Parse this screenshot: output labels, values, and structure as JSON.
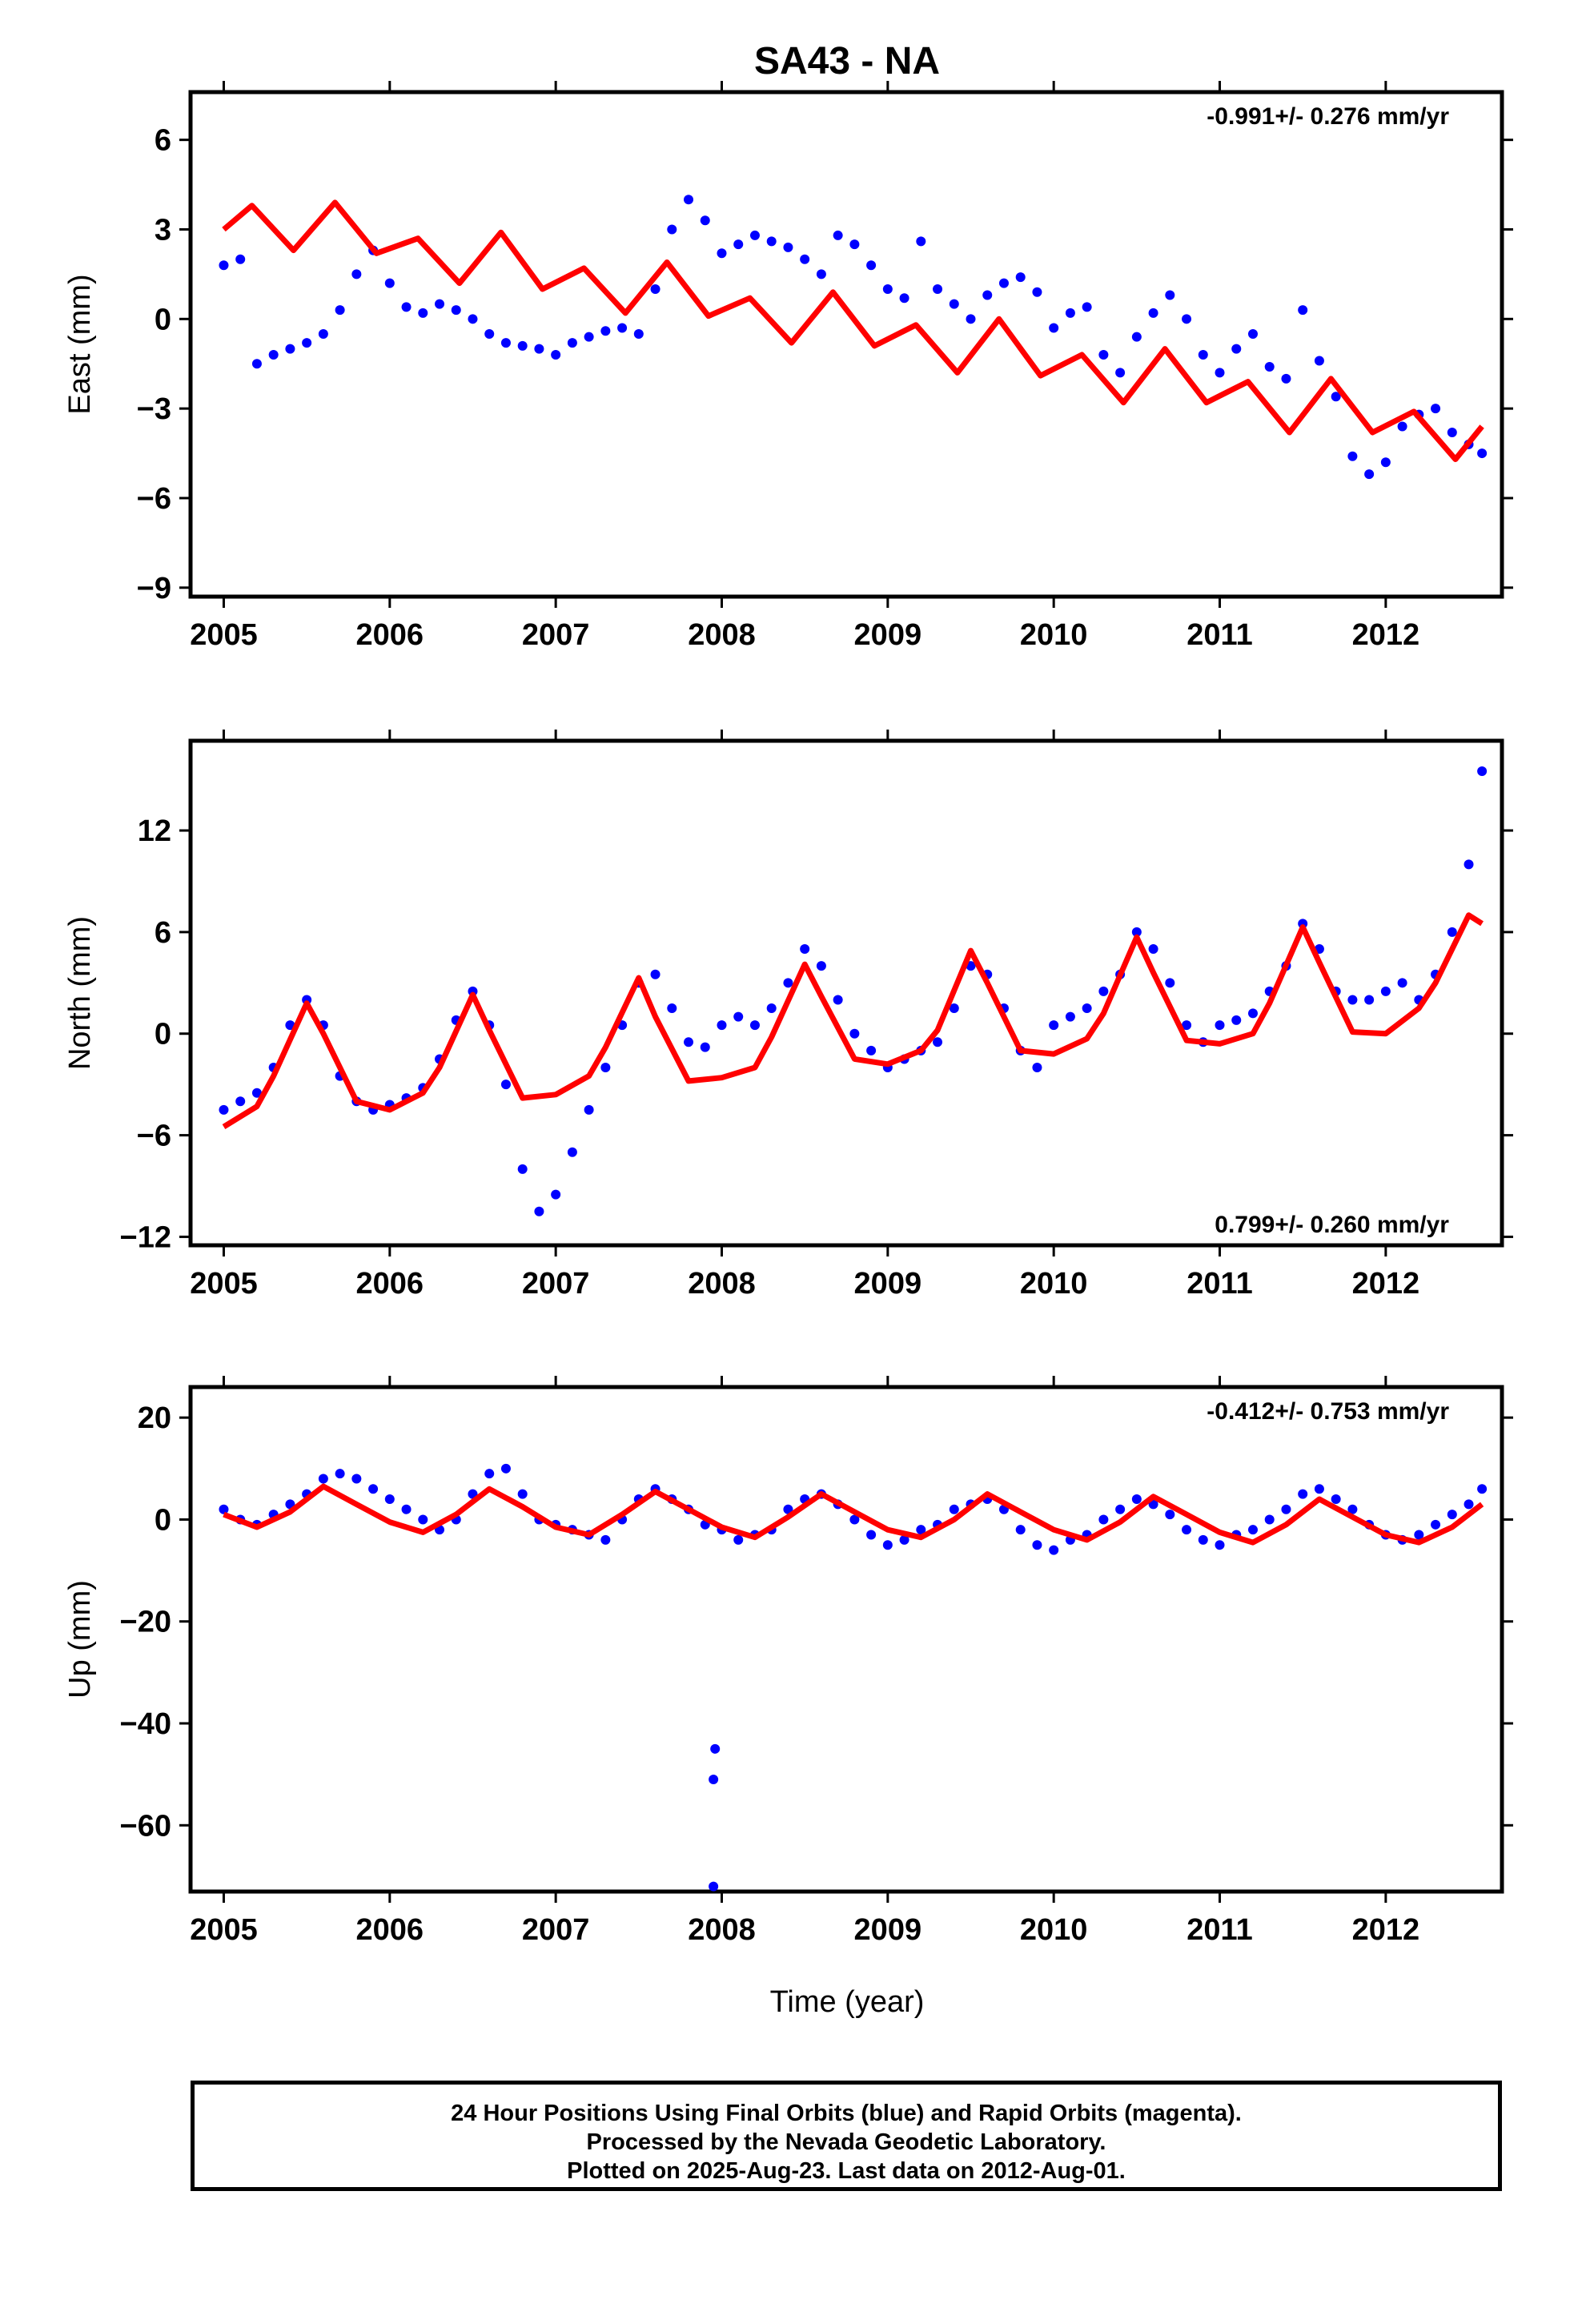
{
  "title": "SA43 - NA",
  "xlabel": "Time (year)",
  "footer": {
    "line1": "24 Hour Positions Using Final Orbits (blue) and Rapid Orbits (magenta).",
    "line2": "Processed by the Nevada Geodetic Laboratory.",
    "line3": "Plotted on 2025-Aug-23. Last data on 2012-Aug-01."
  },
  "colors": {
    "observations": "#0000ff",
    "model": "#ff0000",
    "frame": "#000000"
  },
  "chart_data": [
    {
      "type": "scatter",
      "panel": "east",
      "ylabel": "East (mm)",
      "rate_label": "-0.991+/- 0.276 mm/yr",
      "rate_position": "top-right",
      "xlim": [
        2004.8,
        2012.7
      ],
      "ylim": [
        -9.3,
        7.6
      ],
      "xticks": [
        2005,
        2006,
        2007,
        2008,
        2009,
        2010,
        2011,
        2012
      ],
      "yticks": [
        6,
        3,
        0,
        -3,
        -6,
        -9
      ],
      "grid": false,
      "series": [
        {
          "role": "daily_positions",
          "x": [
            2005.0,
            2005.1,
            2005.2,
            2005.3,
            2005.4,
            2005.5,
            2005.6,
            2005.7,
            2005.8,
            2005.9,
            2006.0,
            2006.1,
            2006.2,
            2006.3,
            2006.4,
            2006.5,
            2006.6,
            2006.7,
            2006.8,
            2006.9,
            2007.0,
            2007.1,
            2007.2,
            2007.3,
            2007.4,
            2007.5,
            2007.6,
            2007.7,
            2007.8,
            2007.9,
            2008.0,
            2008.1,
            2008.2,
            2008.3,
            2008.4,
            2008.5,
            2008.6,
            2008.7,
            2008.8,
            2008.9,
            2009.0,
            2009.1,
            2009.2,
            2009.3,
            2009.4,
            2009.5,
            2009.6,
            2009.7,
            2009.8,
            2009.9,
            2010.0,
            2010.1,
            2010.2,
            2010.3,
            2010.4,
            2010.5,
            2010.6,
            2010.7,
            2010.8,
            2010.9,
            2011.0,
            2011.1,
            2011.2,
            2011.3,
            2011.4,
            2011.5,
            2011.6,
            2011.7,
            2011.8,
            2011.9,
            2012.0,
            2012.1,
            2012.2,
            2012.3,
            2012.4,
            2012.5,
            2012.58
          ],
          "y": [
            1.8,
            2.0,
            -1.5,
            -1.2,
            -1.0,
            -0.8,
            -0.5,
            0.3,
            1.5,
            2.3,
            1.2,
            0.4,
            0.2,
            0.5,
            0.3,
            0.0,
            -0.5,
            -0.8,
            -0.9,
            -1.0,
            -1.2,
            -0.8,
            -0.6,
            -0.4,
            -0.3,
            -0.5,
            1.0,
            3.0,
            4.0,
            3.3,
            2.2,
            2.5,
            2.8,
            2.6,
            2.4,
            2.0,
            1.5,
            2.8,
            2.5,
            1.8,
            1.0,
            0.7,
            2.6,
            1.0,
            0.5,
            0.0,
            0.8,
            1.2,
            1.4,
            0.9,
            -0.3,
            0.2,
            0.4,
            -1.2,
            -1.8,
            -0.6,
            0.2,
            0.8,
            0.0,
            -1.2,
            -1.8,
            -1.0,
            -0.5,
            -1.6,
            -2.0,
            0.3,
            -1.4,
            -2.6,
            -4.6,
            -5.2,
            -4.8,
            -3.6,
            -3.2,
            -3.0,
            -3.8,
            -4.2,
            -4.5
          ]
        },
        {
          "role": "model_fit",
          "x": [
            2005.0,
            2005.17,
            2005.42,
            2005.67,
            2005.92,
            2006.17,
            2006.42,
            2006.67,
            2006.92,
            2007.17,
            2007.42,
            2007.67,
            2007.92,
            2008.17,
            2008.42,
            2008.67,
            2008.92,
            2009.17,
            2009.42,
            2009.67,
            2009.92,
            2010.17,
            2010.42,
            2010.67,
            2010.92,
            2011.17,
            2011.42,
            2011.67,
            2011.92,
            2012.17,
            2012.42,
            2012.58
          ],
          "y": [
            3.0,
            3.8,
            2.3,
            3.9,
            2.2,
            2.7,
            1.2,
            2.9,
            1.0,
            1.7,
            0.2,
            1.9,
            0.1,
            0.7,
            -0.8,
            0.9,
            -0.9,
            -0.2,
            -1.8,
            0.0,
            -1.9,
            -1.2,
            -2.8,
            -1.0,
            -2.8,
            -2.1,
            -3.8,
            -2.0,
            -3.8,
            -3.1,
            -4.7,
            -3.6
          ]
        }
      ]
    },
    {
      "type": "scatter",
      "panel": "north",
      "ylabel": "North (mm)",
      "rate_label": "0.799+/- 0.260 mm/yr",
      "rate_position": "bottom-right",
      "xlim": [
        2004.8,
        2012.7
      ],
      "ylim": [
        -12.5,
        17.3
      ],
      "xticks": [
        2005,
        2006,
        2007,
        2008,
        2009,
        2010,
        2011,
        2012
      ],
      "yticks": [
        12,
        6,
        0,
        -6,
        -12
      ],
      "grid": false,
      "series": [
        {
          "role": "daily_positions",
          "x": [
            2005.0,
            2005.1,
            2005.2,
            2005.3,
            2005.4,
            2005.5,
            2005.6,
            2005.7,
            2005.8,
            2005.9,
            2006.0,
            2006.1,
            2006.2,
            2006.3,
            2006.4,
            2006.5,
            2006.6,
            2006.7,
            2006.8,
            2006.9,
            2007.0,
            2007.1,
            2007.2,
            2007.3,
            2007.4,
            2007.5,
            2007.6,
            2007.7,
            2007.8,
            2007.9,
            2008.0,
            2008.1,
            2008.2,
            2008.3,
            2008.4,
            2008.5,
            2008.6,
            2008.7,
            2008.8,
            2008.9,
            2009.0,
            2009.1,
            2009.2,
            2009.3,
            2009.4,
            2009.5,
            2009.6,
            2009.7,
            2009.8,
            2009.9,
            2010.0,
            2010.1,
            2010.2,
            2010.3,
            2010.4,
            2010.5,
            2010.6,
            2010.7,
            2010.8,
            2010.9,
            2011.0,
            2011.1,
            2011.2,
            2011.3,
            2011.4,
            2011.5,
            2011.6,
            2011.7,
            2011.8,
            2011.9,
            2012.0,
            2012.1,
            2012.2,
            2012.3,
            2012.4,
            2012.5,
            2012.58
          ],
          "y": [
            -4.5,
            -4.0,
            -3.5,
            -2.0,
            0.5,
            2.0,
            0.5,
            -2.5,
            -4.0,
            -4.5,
            -4.2,
            -3.8,
            -3.2,
            -1.5,
            0.8,
            2.5,
            0.5,
            -3.0,
            -8.0,
            -10.5,
            -9.5,
            -7.0,
            -4.5,
            -2.0,
            0.5,
            3.0,
            3.5,
            1.5,
            -0.5,
            -0.8,
            0.5,
            1.0,
            0.5,
            1.5,
            3.0,
            5.0,
            4.0,
            2.0,
            0.0,
            -1.0,
            -2.0,
            -1.5,
            -1.0,
            -0.5,
            1.5,
            4.0,
            3.5,
            1.5,
            -1.0,
            -2.0,
            0.5,
            1.0,
            1.5,
            2.5,
            3.5,
            6.0,
            5.0,
            3.0,
            0.5,
            -0.5,
            0.5,
            0.8,
            1.2,
            2.5,
            4.0,
            6.5,
            5.0,
            2.5,
            2.0,
            2.0,
            2.5,
            3.0,
            2.0,
            3.5,
            6.0,
            10.0,
            15.5
          ]
        },
        {
          "role": "model_fit",
          "x": [
            2005.0,
            2005.2,
            2005.3,
            2005.5,
            2005.6,
            2005.8,
            2006.0,
            2006.2,
            2006.3,
            2006.5,
            2006.6,
            2006.8,
            2007.0,
            2007.2,
            2007.3,
            2007.5,
            2007.6,
            2007.8,
            2008.0,
            2008.2,
            2008.3,
            2008.5,
            2008.6,
            2008.8,
            2009.0,
            2009.2,
            2009.3,
            2009.5,
            2009.6,
            2009.8,
            2010.0,
            2010.2,
            2010.3,
            2010.5,
            2010.6,
            2010.8,
            2011.0,
            2011.2,
            2011.3,
            2011.5,
            2011.6,
            2011.8,
            2012.0,
            2012.2,
            2012.3,
            2012.5,
            2012.58
          ],
          "y": [
            -5.5,
            -4.3,
            -2.5,
            1.8,
            0.0,
            -4.0,
            -4.5,
            -3.5,
            -2.0,
            2.3,
            0.2,
            -3.8,
            -3.6,
            -2.5,
            -0.8,
            3.3,
            1.0,
            -2.8,
            -2.6,
            -2.0,
            -0.2,
            4.1,
            2.2,
            -1.5,
            -1.8,
            -1.0,
            0.2,
            4.9,
            3.0,
            -1.0,
            -1.2,
            -0.3,
            1.2,
            5.7,
            3.6,
            -0.4,
            -0.6,
            0.0,
            1.8,
            6.3,
            4.2,
            0.1,
            0.0,
            1.5,
            3.0,
            7.0,
            6.5
          ]
        }
      ]
    },
    {
      "type": "scatter",
      "panel": "up",
      "ylabel": "Up (mm)",
      "rate_label": "-0.412+/- 0.753 mm/yr",
      "rate_position": "top-right",
      "xlim": [
        2004.8,
        2012.7
      ],
      "ylim": [
        -73,
        26
      ],
      "xticks": [
        2005,
        2006,
        2007,
        2008,
        2009,
        2010,
        2011,
        2012
      ],
      "yticks": [
        20,
        0,
        -20,
        -40,
        -60
      ],
      "grid": false,
      "series": [
        {
          "role": "daily_positions",
          "x": [
            2005.0,
            2005.1,
            2005.2,
            2005.3,
            2005.4,
            2005.5,
            2005.6,
            2005.7,
            2005.8,
            2005.9,
            2006.0,
            2006.1,
            2006.2,
            2006.3,
            2006.4,
            2006.5,
            2006.6,
            2006.7,
            2006.8,
            2006.9,
            2007.0,
            2007.1,
            2007.2,
            2007.3,
            2007.4,
            2007.5,
            2007.6,
            2007.7,
            2007.8,
            2007.9,
            2007.95,
            2007.95,
            2007.96,
            2008.0,
            2008.1,
            2008.2,
            2008.3,
            2008.4,
            2008.5,
            2008.6,
            2008.7,
            2008.8,
            2008.9,
            2009.0,
            2009.1,
            2009.2,
            2009.3,
            2009.4,
            2009.5,
            2009.6,
            2009.7,
            2009.8,
            2009.9,
            2010.0,
            2010.1,
            2010.2,
            2010.3,
            2010.4,
            2010.5,
            2010.6,
            2010.7,
            2010.8,
            2010.9,
            2011.0,
            2011.1,
            2011.2,
            2011.3,
            2011.4,
            2011.5,
            2011.6,
            2011.7,
            2011.8,
            2011.9,
            2012.0,
            2012.1,
            2012.2,
            2012.3,
            2012.4,
            2012.5,
            2012.58
          ],
          "y": [
            2.0,
            0.0,
            -1.0,
            1.0,
            3.0,
            5.0,
            8.0,
            9.0,
            8.0,
            6.0,
            4.0,
            2.0,
            0.0,
            -2.0,
            0.0,
            5.0,
            9.0,
            10.0,
            5.0,
            0.0,
            -1.0,
            -2.0,
            -3.0,
            -4.0,
            0.0,
            4.0,
            6.0,
            4.0,
            2.0,
            -1.0,
            -72.0,
            -51.0,
            -45.0,
            -2.0,
            -4.0,
            -3.0,
            -2.0,
            2.0,
            4.0,
            5.0,
            3.0,
            0.0,
            -3.0,
            -5.0,
            -4.0,
            -2.0,
            -1.0,
            2.0,
            3.0,
            4.0,
            2.0,
            -2.0,
            -5.0,
            -6.0,
            -4.0,
            -3.0,
            0.0,
            2.0,
            4.0,
            3.0,
            1.0,
            -2.0,
            -4.0,
            -5.0,
            -3.0,
            -2.0,
            0.0,
            2.0,
            5.0,
            6.0,
            4.0,
            2.0,
            -1.0,
            -3.0,
            -4.0,
            -3.0,
            -1.0,
            1.0,
            3.0,
            6.0
          ]
        },
        {
          "role": "model_fit",
          "x": [
            2005.0,
            2005.2,
            2005.4,
            2005.6,
            2005.8,
            2006.0,
            2006.2,
            2006.4,
            2006.6,
            2006.8,
            2007.0,
            2007.2,
            2007.4,
            2007.6,
            2007.8,
            2008.0,
            2008.2,
            2008.4,
            2008.6,
            2008.8,
            2009.0,
            2009.2,
            2009.4,
            2009.6,
            2009.8,
            2010.0,
            2010.2,
            2010.4,
            2010.6,
            2010.8,
            2011.0,
            2011.2,
            2011.4,
            2011.6,
            2011.8,
            2012.0,
            2012.2,
            2012.4,
            2012.58
          ],
          "y": [
            1.0,
            -1.5,
            1.5,
            6.5,
            3.0,
            -0.5,
            -2.5,
            1.0,
            6.0,
            2.5,
            -1.5,
            -3.0,
            1.0,
            5.5,
            2.0,
            -1.5,
            -3.5,
            0.5,
            5.0,
            1.5,
            -2.0,
            -3.5,
            0.0,
            5.0,
            1.5,
            -2.0,
            -4.0,
            -0.5,
            4.5,
            1.0,
            -2.5,
            -4.5,
            -1.0,
            4.0,
            0.5,
            -3.0,
            -4.5,
            -1.5,
            3.0
          ]
        }
      ]
    }
  ]
}
